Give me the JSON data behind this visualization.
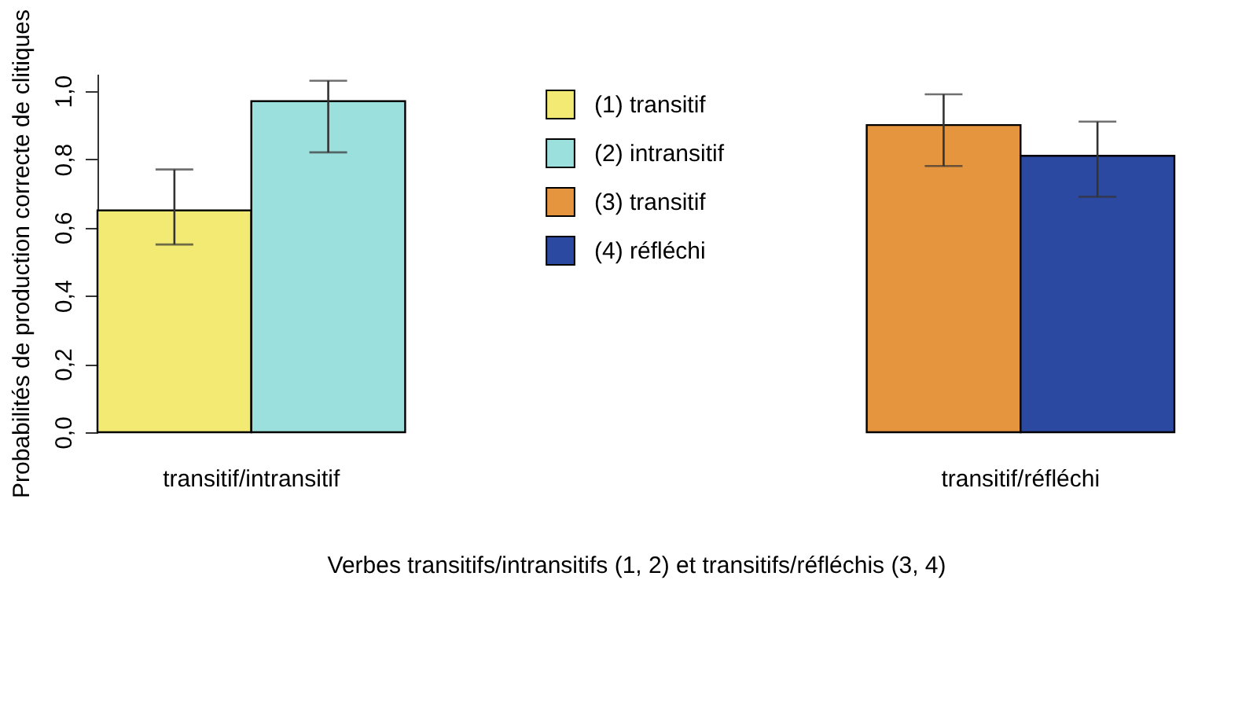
{
  "chart_data": {
    "type": "bar",
    "categories": [
      "transitif/intransitif",
      "transitif/réfléchi"
    ],
    "series": [
      {
        "name": "(1) transitif",
        "color": "#f3ea73",
        "values": [
          0.65,
          null
        ],
        "errors": [
          [
            0.55,
            0.77
          ],
          null
        ]
      },
      {
        "name": "(2) intransitif",
        "color": "#9be0dd",
        "values": [
          0.97,
          null
        ],
        "errors": [
          [
            0.82,
            1.03
          ],
          null
        ]
      },
      {
        "name": "(3) transitif",
        "color": "#e6953f",
        "values": [
          null,
          0.9
        ],
        "errors": [
          null,
          [
            0.78,
            0.99
          ]
        ]
      },
      {
        "name": "(4) réfléchi",
        "color": "#2c49a1",
        "values": [
          null,
          0.81
        ],
        "errors": [
          null,
          [
            0.69,
            0.91
          ]
        ]
      }
    ],
    "xlabel": "Verbes transitifs/intransitifs (1, 2) et transitifs/réfléchis (3, 4)",
    "ylabel": "Probabilités de production correcte de clitiques",
    "ylim": [
      0,
      1.05
    ],
    "yticks": [
      {
        "value": 0,
        "label": "0,0"
      },
      {
        "value": 0.2,
        "label": "0,2"
      },
      {
        "value": 0.4,
        "label": "0,4"
      },
      {
        "value": 0.6,
        "label": "0,6"
      },
      {
        "value": 0.8,
        "label": "0,8"
      },
      {
        "value": 1.0,
        "label": "1,0"
      }
    ],
    "grid": false,
    "legend": "top"
  }
}
